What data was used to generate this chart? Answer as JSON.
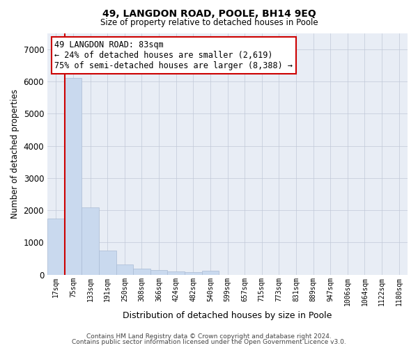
{
  "title1": "49, LANGDON ROAD, POOLE, BH14 9EQ",
  "title2": "Size of property relative to detached houses in Poole",
  "xlabel": "Distribution of detached houses by size in Poole",
  "ylabel": "Number of detached properties",
  "bar_color": "#c9d9ee",
  "bar_edge_color": "#aabbd4",
  "bin_labels": [
    "17sqm",
    "75sqm",
    "133sqm",
    "191sqm",
    "250sqm",
    "308sqm",
    "366sqm",
    "424sqm",
    "482sqm",
    "540sqm",
    "599sqm",
    "657sqm",
    "715sqm",
    "773sqm",
    "831sqm",
    "889sqm",
    "947sqm",
    "1006sqm",
    "1064sqm",
    "1122sqm",
    "1180sqm"
  ],
  "bar_values": [
    1750,
    6100,
    2100,
    750,
    310,
    195,
    140,
    105,
    75,
    125,
    0,
    0,
    0,
    0,
    0,
    0,
    0,
    0,
    0,
    0,
    0
  ],
  "vline_color": "#cc0000",
  "annotation_text": "49 LANGDON ROAD: 83sqm\n← 24% of detached houses are smaller (2,619)\n75% of semi-detached houses are larger (8,388) →",
  "annotation_box_color": "#cc0000",
  "ylim": [
    0,
    7500
  ],
  "yticks": [
    0,
    1000,
    2000,
    3000,
    4000,
    5000,
    6000,
    7000
  ],
  "footer1": "Contains HM Land Registry data © Crown copyright and database right 2024.",
  "footer2": "Contains public sector information licensed under the Open Government Licence v3.0.",
  "background_color": "#ffffff",
  "plot_bg_color": "#e8edf5",
  "grid_color": "#c0c8d8"
}
